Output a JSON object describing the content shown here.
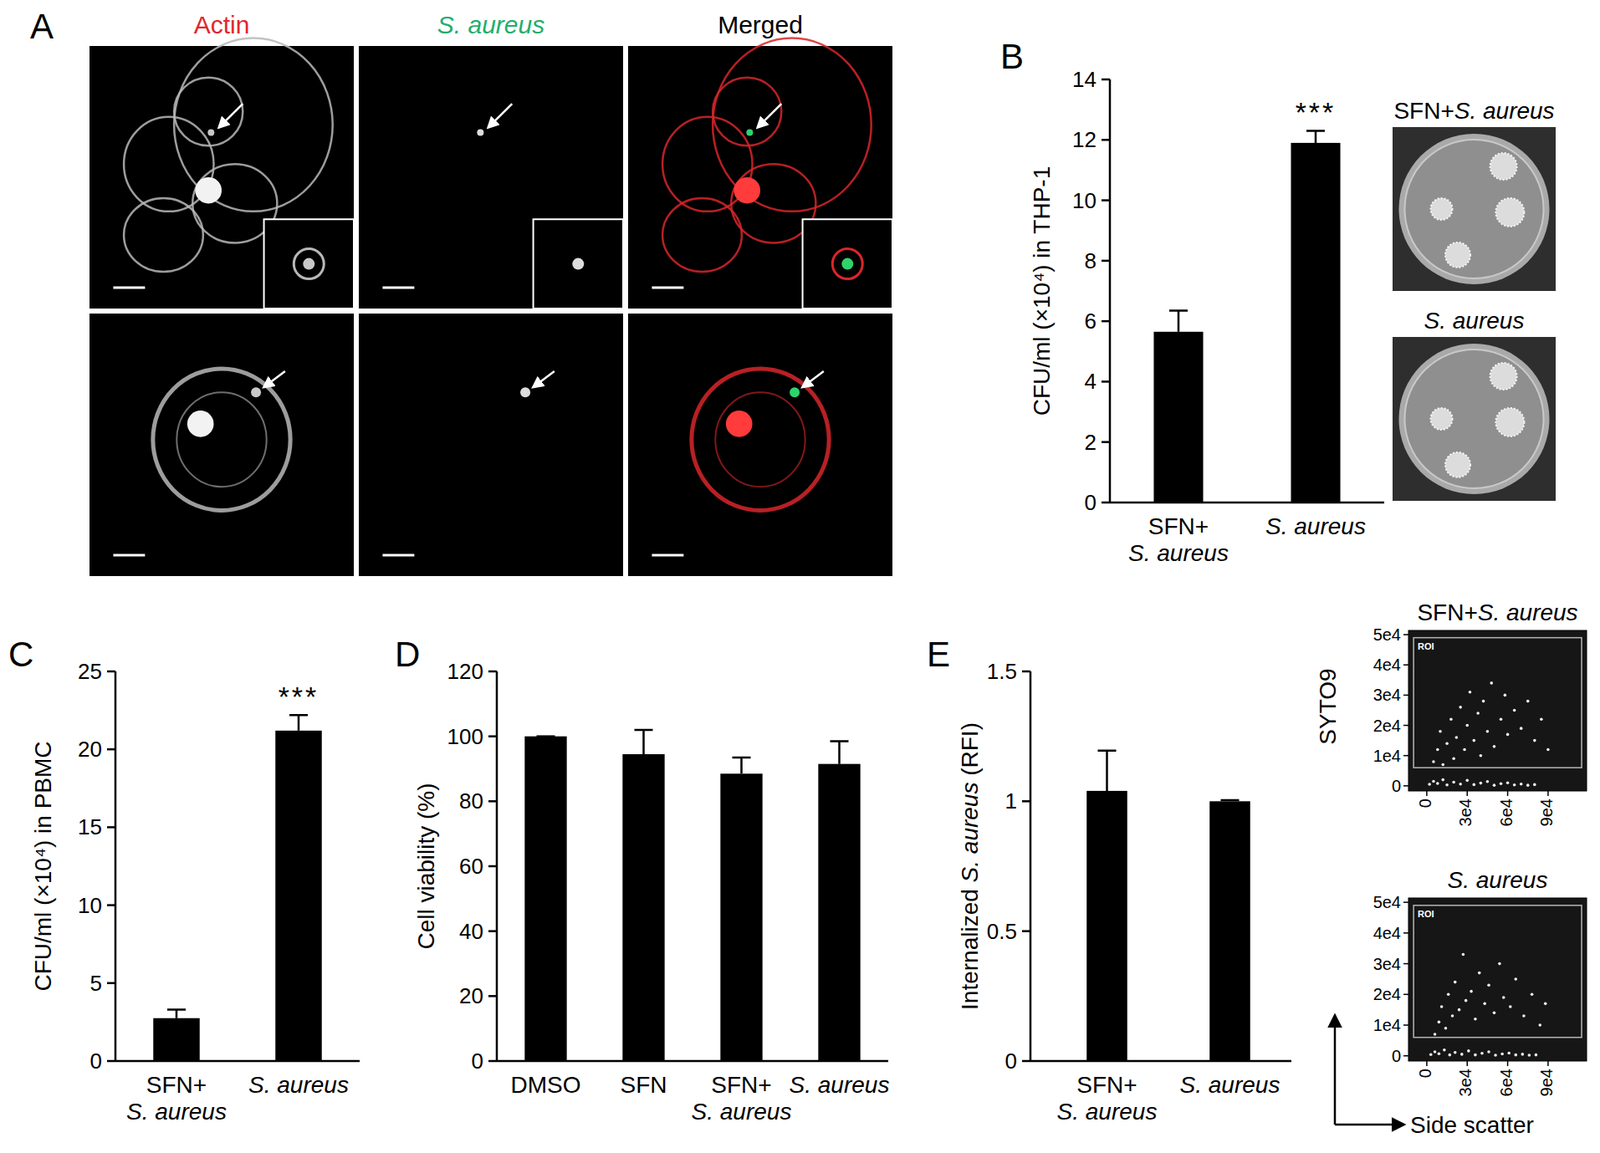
{
  "panel_a": {
    "panel": "A",
    "columns": [
      "Actin",
      "S. aureus",
      "Merged"
    ],
    "colors": [
      "#e3262d",
      "#1fae6e",
      "#000000"
    ]
  },
  "italic_terms": [
    "S. aureus"
  ],
  "chart_data": [
    {
      "panel": "B",
      "type": "bar",
      "categories": [
        "SFN+\nS. aureus",
        "S. aureus"
      ],
      "values": [
        5.65,
        11.9
      ],
      "errors": [
        0.7,
        0.4
      ],
      "significance": [
        null,
        "***"
      ],
      "color": "#000000",
      "ylabel": "CFU/ml (×10⁴) in THP-1",
      "ylim": [
        0,
        14
      ],
      "yticks": [
        0,
        2,
        4,
        6,
        8,
        10,
        12,
        14
      ],
      "image_titles": [
        "SFN+S. aureus",
        "S. aureus"
      ]
    },
    {
      "panel": "C",
      "type": "bar",
      "categories": [
        "SFN+\nS. aureus",
        "S. aureus"
      ],
      "values": [
        2.75,
        21.2
      ],
      "errors": [
        0.55,
        1.0
      ],
      "significance": [
        null,
        "***"
      ],
      "color": "#000000",
      "ylabel": "CFU/ml (×10⁴) in PBMC",
      "ylim": [
        0,
        25
      ],
      "yticks": [
        0,
        5,
        10,
        15,
        20,
        25
      ]
    },
    {
      "panel": "D",
      "type": "bar",
      "categories": [
        "DMSO",
        "SFN",
        "SFN+\nS. aureus",
        "S. aureus"
      ],
      "values": [
        100,
        94.5,
        88.5,
        91.5
      ],
      "errors": [
        0,
        7.5,
        5,
        7
      ],
      "color": "#000000",
      "ylabel": "Cell viability (%)",
      "ylim": [
        0,
        120
      ],
      "yticks": [
        0,
        20,
        40,
        60,
        80,
        100,
        120
      ]
    },
    {
      "panel": "E",
      "type": "bar",
      "categories": [
        "SFN+\nS. aureus",
        "S. aureus"
      ],
      "values": [
        1.04,
        1
      ],
      "errors": [
        0.155,
        0.004
      ],
      "color": "#000000",
      "ylabel": "Internalized S. aureus (RFI)",
      "ylim": [
        0,
        1.5
      ],
      "yticks": [
        0,
        0.5,
        1,
        1.5
      ]
    },
    {
      "type": "scatter",
      "title": "SFN+S. aureus",
      "ylabel": "SYTO9",
      "color": "#eeeeee",
      "x": [
        2000,
        5000,
        8000,
        12000,
        15000,
        20000,
        25000,
        30000,
        35000,
        40000,
        45000,
        50000,
        55000,
        60000,
        65000,
        70000,
        75000,
        80000,
        5000,
        8000,
        10000,
        12000,
        15000,
        18000,
        20000,
        22000,
        25000,
        28000,
        30000,
        32000,
        35000,
        38000,
        40000,
        42000,
        45000,
        48000,
        50000,
        55000,
        58000,
        60000,
        65000,
        70000,
        75000,
        80000,
        85000,
        90000
      ],
      "y": [
        500,
        1500,
        800,
        2000,
        300,
        1200,
        600,
        1800,
        400,
        900,
        1400,
        200,
        700,
        1000,
        300,
        600,
        200,
        400,
        8000,
        12000,
        18000,
        7000,
        14000,
        22000,
        9000,
        16000,
        26000,
        12000,
        20000,
        31000,
        15000,
        24000,
        10000,
        28000,
        18000,
        34000,
        13000,
        22000,
        30000,
        17000,
        25000,
        19000,
        28000,
        15000,
        22000,
        12000
      ],
      "xlim": [
        -13600,
        118600
      ],
      "ylim": [
        -1700,
        51400
      ],
      "xticks": [
        0,
        {
          "value": 30000,
          "label": "3e4"
        },
        {
          "value": 60000,
          "label": "6e4"
        },
        {
          "value": 90000,
          "label": "9e4"
        }
      ],
      "yticks": [
        0,
        {
          "value": 10000,
          "label": "1e4"
        },
        {
          "value": 20000,
          "label": "2e4"
        },
        {
          "value": 30000,
          "label": "3e4"
        },
        {
          "value": 40000,
          "label": "4e4"
        },
        {
          "value": 50000,
          "label": "5e4"
        }
      ],
      "roi": {
        "label": "ROI",
        "x": [
          -9800,
          114900
        ],
        "y": [
          6000,
          49000
        ]
      }
    },
    {
      "type": "scatter",
      "title": "S. aureus",
      "xlabel": "Side scatter",
      "color": "#eeeeee",
      "x": [
        3000,
        6000,
        9000,
        13000,
        17000,
        21000,
        26000,
        31000,
        36000,
        41000,
        46000,
        51000,
        56000,
        61000,
        66000,
        71000,
        76000,
        81000,
        6000,
        9000,
        11000,
        14000,
        16000,
        19000,
        21000,
        24000,
        27000,
        29000,
        33000,
        36000,
        39000,
        43000,
        46000,
        50000,
        54000,
        57000,
        62000,
        66000,
        72000,
        78000,
        84000,
        88000
      ],
      "y": [
        400,
        1300,
        700,
        1900,
        300,
        1100,
        500,
        1600,
        300,
        800,
        1300,
        200,
        600,
        900,
        300,
        500,
        200,
        300,
        7000,
        11000,
        16000,
        9000,
        20000,
        13000,
        24000,
        15000,
        33000,
        18000,
        21000,
        12000,
        27000,
        17000,
        23000,
        14000,
        30000,
        19000,
        16000,
        25000,
        13000,
        20000,
        10000,
        17000
      ],
      "xlim": [
        -13600,
        118600
      ],
      "ylim": [
        -1700,
        51400
      ],
      "xticks": [
        0,
        {
          "value": 30000,
          "label": "3e4"
        },
        {
          "value": 60000,
          "label": "6e4"
        },
        {
          "value": 90000,
          "label": "9e4"
        }
      ],
      "yticks": [
        0,
        {
          "value": 10000,
          "label": "1e4"
        },
        {
          "value": 20000,
          "label": "2e4"
        },
        {
          "value": 30000,
          "label": "3e4"
        },
        {
          "value": 40000,
          "label": "4e4"
        },
        {
          "value": 50000,
          "label": "5e4"
        }
      ],
      "roi": {
        "label": "ROI",
        "x": [
          -9800,
          114900
        ],
        "y": [
          6000,
          49000
        ]
      }
    }
  ]
}
